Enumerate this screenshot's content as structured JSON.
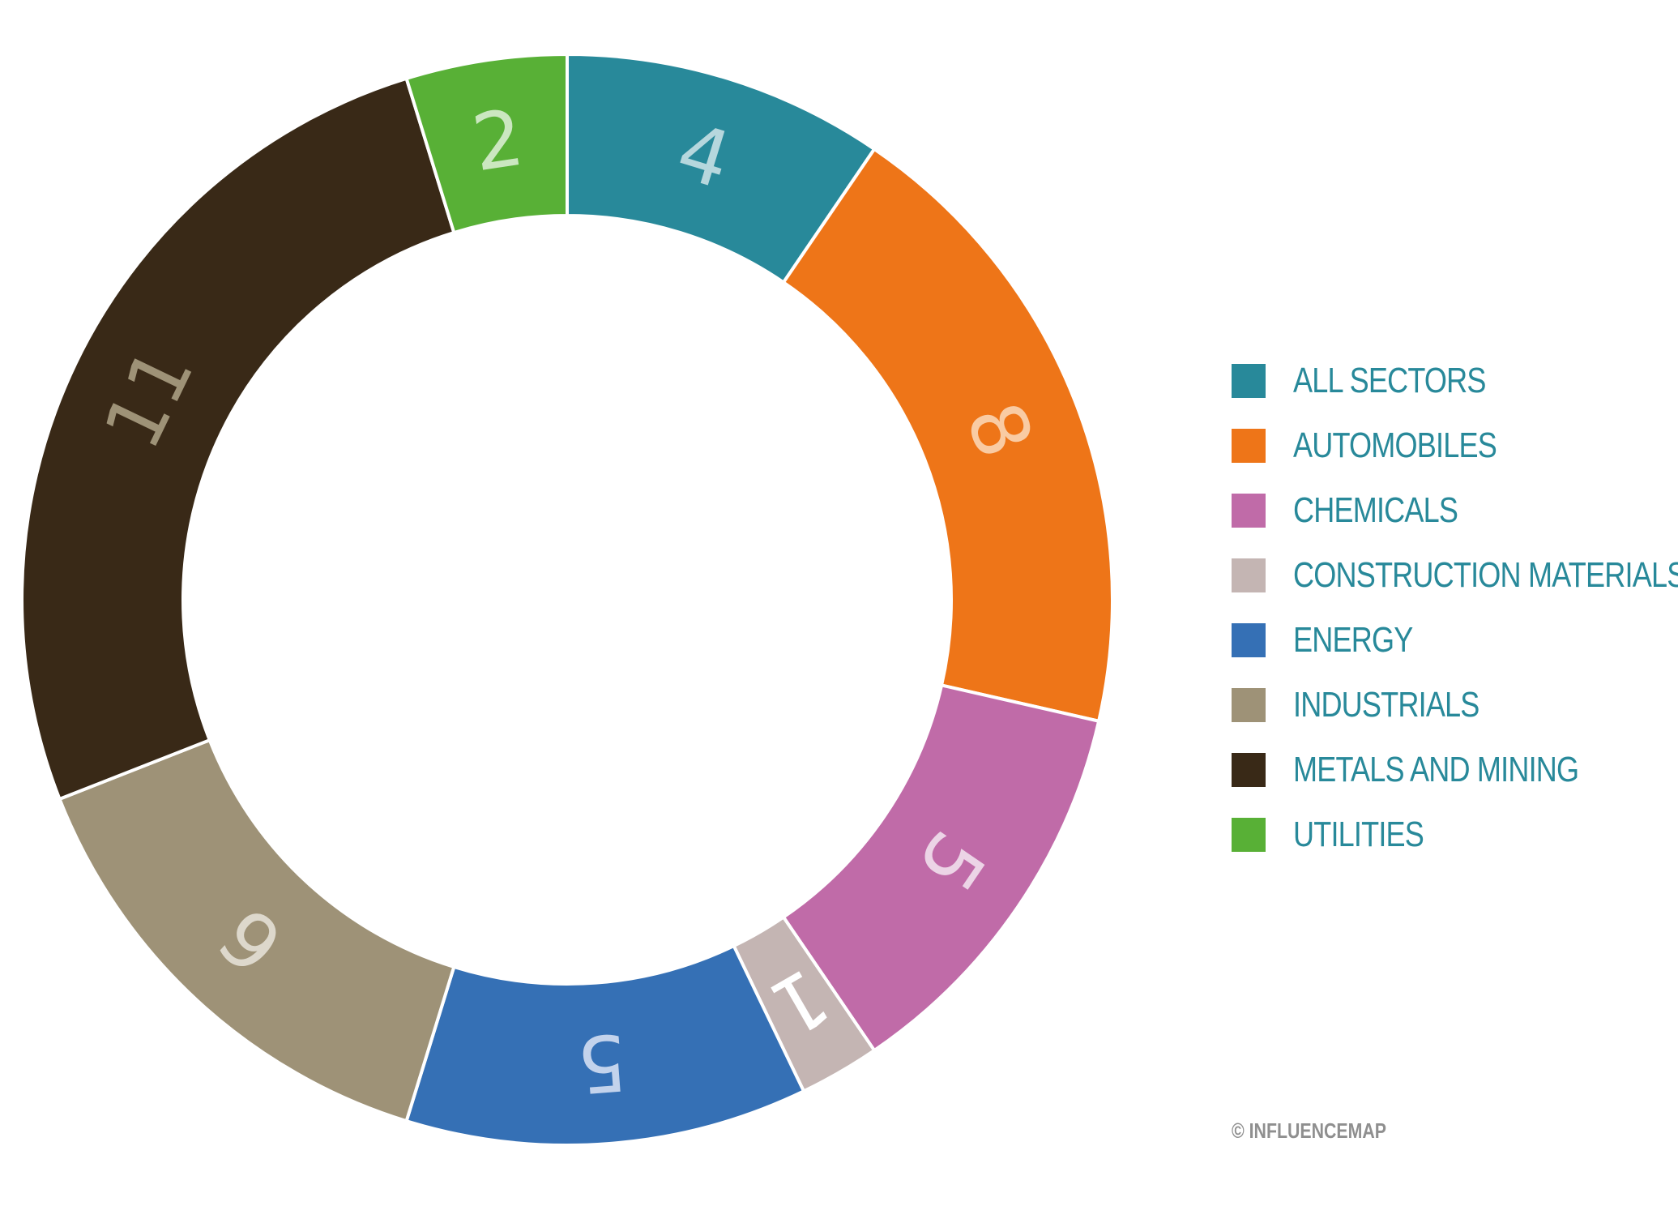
{
  "chart_data": {
    "type": "pie",
    "variant": "donut",
    "title": "",
    "categories": [
      "ALL SECTORS",
      "AUTOMOBILES",
      "CHEMICALS",
      "CONSTRUCTION MATERIALS",
      "ENERGY",
      "INDUSTRIALS",
      "METALS AND MINING",
      "UTILITIES"
    ],
    "values": [
      4,
      8,
      5,
      1,
      5,
      6,
      11,
      2
    ],
    "colors": [
      "#28899a",
      "#ee7518",
      "#c06ba8",
      "#c4b5b3",
      "#3570b5",
      "#9e9277",
      "#392917",
      "#58b036"
    ],
    "label_colors": [
      "#b6d7dd",
      "#f9cba3",
      "#ecd4e6",
      "#ffffff",
      "#c3d3ec",
      "#ddd8cc",
      "#9e9277",
      "#cbe7c0"
    ],
    "legend_position": "right",
    "legend_text_color": "#28899a"
  },
  "footer": {
    "credit": "© INFLUENCEMAP"
  }
}
